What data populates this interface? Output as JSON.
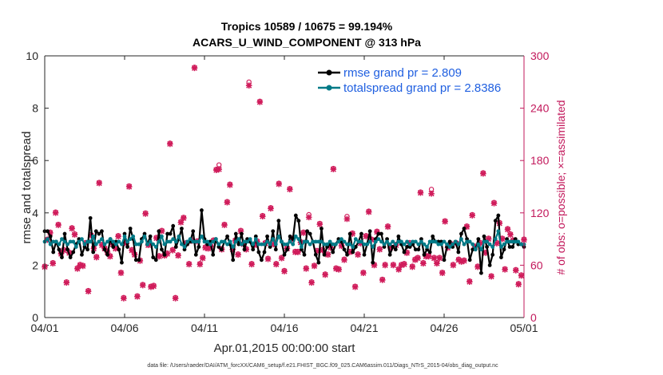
{
  "chart_data": {
    "type": "line",
    "title_line1": "Tropics 10589 / 10675 = 99.194%",
    "title_line2": "ACARS_U_WIND_COMPONENT @ 313 hPa",
    "xlabel": "Apr.01,2015 00:00:00 start",
    "ylabel_left": "rmse and totalspread",
    "ylabel_right": "# of obs: o=possible; ×=assimilated",
    "footer": "data file: /Users/raeder/DAI/ATM_forcXX/CAM6_setup/f.e21.FHIST_BGC.f09_025.CAM6assim.011/Diags_NTrS_2015-04/obs_diag_output.nc",
    "x_ticks": [
      "04/01",
      "04/06",
      "04/11",
      "04/16",
      "04/21",
      "04/26",
      "05/01"
    ],
    "x_range_days": [
      0,
      30
    ],
    "ylim_left": [
      0,
      10
    ],
    "y_ticks_left": [
      "0",
      "2",
      "4",
      "6",
      "8",
      "10"
    ],
    "ylim_right": [
      0,
      300
    ],
    "y_ticks_right": [
      "0",
      "60",
      "120",
      "180",
      "240",
      "300"
    ],
    "colors": {
      "rmse": "#000000",
      "spread": "#007a87",
      "obs": "#d01c5b",
      "legend_text": "#1f5fe0"
    },
    "series": [
      {
        "name": "rmse grand pr = 2.809",
        "key": "rmse",
        "values": [
          3.3,
          3.3,
          3.1,
          2.5,
          2.9,
          2.6,
          2.3,
          3.2,
          2.6,
          2.3,
          2.5,
          2.8,
          3.0,
          2.4,
          2.7,
          2.6,
          3.8,
          2.5,
          3.3,
          3.2,
          3.3,
          2.6,
          2.4,
          3.0,
          2.7,
          2.9,
          2.6,
          2.1,
          3.2,
          2.7,
          3.4,
          3.0,
          2.2,
          2.2,
          3.0,
          3.2,
          2.8,
          3.1,
          2.3,
          2.2,
          3.3,
          2.6,
          2.4,
          3.2,
          3.2,
          3.5,
          2.7,
          3.0,
          3.4,
          2.6,
          2.8,
          2.9,
          3.3,
          2.4,
          2.7,
          4.1,
          3.0,
          2.8,
          2.9,
          2.4,
          3.0,
          2.7,
          2.6,
          2.9,
          3.1,
          2.8,
          2.2,
          3.2,
          2.8,
          3.2,
          2.6,
          3.0,
          2.9,
          2.6,
          3.1,
          2.5,
          2.2,
          2.5,
          3.1,
          2.7,
          3.3,
          2.6,
          3.7,
          2.9,
          2.4,
          2.6,
          3.1,
          3.0,
          3.9,
          3.7,
          2.6,
          2.4,
          3.3,
          3.2,
          2.9,
          2.4,
          2.1,
          3.4,
          2.4,
          2.7,
          2.8,
          2.5,
          2.8,
          3.0,
          2.9,
          2.6,
          2.4,
          3.2,
          2.5,
          2.7,
          2.9,
          3.2,
          2.4,
          2.8,
          3.3,
          2.1,
          3.0,
          3.2,
          3.2,
          2.7,
          3.0,
          2.4,
          2.7,
          2.6,
          3.1,
          2.8,
          2.5,
          2.7,
          2.7,
          2.8,
          2.6,
          2.6,
          3.0,
          2.4,
          2.6,
          2.5,
          3.1,
          2.9,
          2.9,
          2.9,
          2.2,
          2.7,
          2.9,
          2.7,
          2.9,
          2.5,
          3.2,
          3.4,
          3.0,
          2.2,
          2.6,
          2.6,
          3.0,
          1.7,
          3.1,
          2.7,
          2.0,
          2.4,
          3.7,
          3.9,
          2.3,
          2.6,
          3.0,
          2.7,
          2.7,
          3.0,
          2.8,
          2.8,
          2.7
        ]
      },
      {
        "name": "totalspread grand pr = 2.8386",
        "key": "spread",
        "values": [
          2.9,
          3.0,
          2.8,
          2.9,
          2.9,
          2.8,
          3.0,
          2.9,
          2.8,
          2.9,
          2.9,
          2.7,
          2.9,
          3.0,
          2.8,
          2.9,
          2.9,
          3.1,
          2.8,
          2.9,
          3.0,
          2.8,
          2.9,
          3.0,
          2.9,
          2.8,
          2.9,
          2.8,
          3.1,
          2.9,
          3.0,
          3.1,
          2.8,
          2.8,
          2.9,
          3.1,
          2.8,
          2.9,
          2.8,
          2.7,
          2.9,
          3.1,
          2.8,
          2.9,
          2.9,
          3.0,
          2.9,
          3.1,
          2.8,
          2.7,
          2.9,
          3.0,
          2.9,
          2.9,
          2.9,
          3.1,
          2.9,
          2.9,
          2.8,
          2.9,
          3.0,
          2.8,
          2.9,
          2.9,
          2.8,
          2.9,
          2.7,
          2.9,
          3.0,
          2.8,
          2.9,
          2.9,
          3.0,
          2.8,
          3.0,
          2.8,
          2.8,
          2.8,
          2.9,
          2.8,
          3.0,
          2.8,
          3.1,
          2.9,
          2.8,
          2.8,
          2.9,
          2.8,
          3.1,
          3.0,
          2.7,
          2.9,
          2.9,
          2.8,
          2.9,
          2.9,
          2.9,
          2.9,
          2.8,
          2.8,
          2.9,
          2.8,
          2.8,
          2.9,
          3.0,
          2.9,
          2.8,
          2.8,
          2.7,
          3.0,
          2.9,
          2.9,
          2.8,
          2.8,
          2.9,
          2.7,
          2.9,
          3.0,
          2.9,
          2.8,
          2.9,
          2.8,
          2.9,
          2.8,
          2.9,
          2.9,
          2.8,
          2.9,
          2.8,
          2.9,
          2.9,
          2.8,
          2.9,
          2.8,
          2.7,
          2.9,
          2.9,
          2.9,
          2.8,
          2.8,
          2.9,
          2.8,
          2.7,
          2.8,
          2.9,
          2.8,
          3.0,
          2.8,
          2.9,
          2.9,
          2.8,
          2.6,
          2.8,
          2.6,
          2.9,
          2.9,
          2.8,
          2.7,
          3.0,
          3.3,
          2.7,
          2.8,
          2.9,
          2.9,
          2.9,
          2.9,
          2.9,
          2.8,
          2.8
        ]
      }
    ],
    "obs_possible": [
      59,
      90,
      98,
      63,
      121,
      107,
      74,
      78,
      41,
      75,
      103,
      96,
      57,
      61,
      60,
      86,
      31,
      95,
      80,
      70,
      155,
      84,
      80,
      76,
      71,
      85,
      80,
      94,
      52,
      23,
      86,
      151,
      78,
      73,
      25,
      66,
      38,
      120,
      84,
      36,
      37,
      92,
      71,
      100,
      72,
      74,
      200,
      78,
      23,
      72,
      110,
      115,
      86,
      62,
      89,
      287,
      88,
      62,
      69,
      81,
      80,
      82,
      89,
      170,
      175,
      79,
      107,
      133,
      153,
      79,
      89,
      73,
      100,
      85,
      79,
      270,
      62,
      84,
      88,
      248,
      117,
      86,
      68,
      126,
      85,
      62,
      154,
      69,
      54,
      80,
      148,
      91,
      76,
      76,
      87,
      98,
      57,
      118,
      41,
      60,
      77,
      108,
      78,
      50,
      73,
      81,
      171,
      57,
      56,
      83,
      67,
      116,
      76,
      97,
      36,
      73,
      86,
      52,
      94,
      122,
      90,
      61,
      99,
      79,
      44,
      61,
      105,
      81,
      61,
      84,
      56,
      61,
      62,
      75,
      86,
      59,
      67,
      69,
      144,
      63,
      71,
      71,
      147,
      69,
      63,
      69,
      52,
      111,
      81,
      85,
      61,
      86,
      67,
      65,
      66,
      105,
      42,
      118,
      82,
      59,
      86,
      166,
      75,
      91,
      48,
      132,
      86,
      109,
      91,
      56,
      102,
      96,
      89,
      55,
      39,
      49,
      90
    ],
    "obs_assimilated": [
      58,
      89,
      97,
      62,
      120,
      106,
      73,
      77,
      40,
      74,
      102,
      95,
      56,
      60,
      59,
      85,
      30,
      94,
      79,
      69,
      154,
      83,
      79,
      75,
      70,
      84,
      79,
      93,
      51,
      22,
      85,
      150,
      77,
      72,
      24,
      65,
      37,
      119,
      83,
      35,
      36,
      91,
      70,
      99,
      71,
      73,
      199,
      77,
      22,
      71,
      109,
      114,
      85,
      61,
      88,
      286,
      87,
      61,
      68,
      80,
      79,
      81,
      88,
      169,
      170,
      78,
      106,
      132,
      152,
      78,
      88,
      72,
      99,
      84,
      78,
      266,
      61,
      83,
      87,
      247,
      116,
      85,
      67,
      125,
      84,
      61,
      153,
      68,
      53,
      79,
      147,
      90,
      75,
      75,
      86,
      97,
      56,
      115,
      40,
      59,
      76,
      107,
      77,
      49,
      72,
      80,
      170,
      56,
      55,
      82,
      66,
      113,
      75,
      96,
      35,
      72,
      85,
      51,
      93,
      121,
      89,
      60,
      98,
      78,
      43,
      60,
      104,
      80,
      60,
      83,
      55,
      60,
      61,
      74,
      85,
      58,
      66,
      68,
      143,
      62,
      70,
      70,
      142,
      68,
      62,
      68,
      51,
      110,
      80,
      84,
      60,
      85,
      66,
      64,
      65,
      104,
      41,
      117,
      81,
      58,
      85,
      165,
      74,
      90,
      47,
      131,
      85,
      108,
      90,
      55,
      101,
      95,
      88,
      54,
      38,
      48,
      89
    ]
  }
}
